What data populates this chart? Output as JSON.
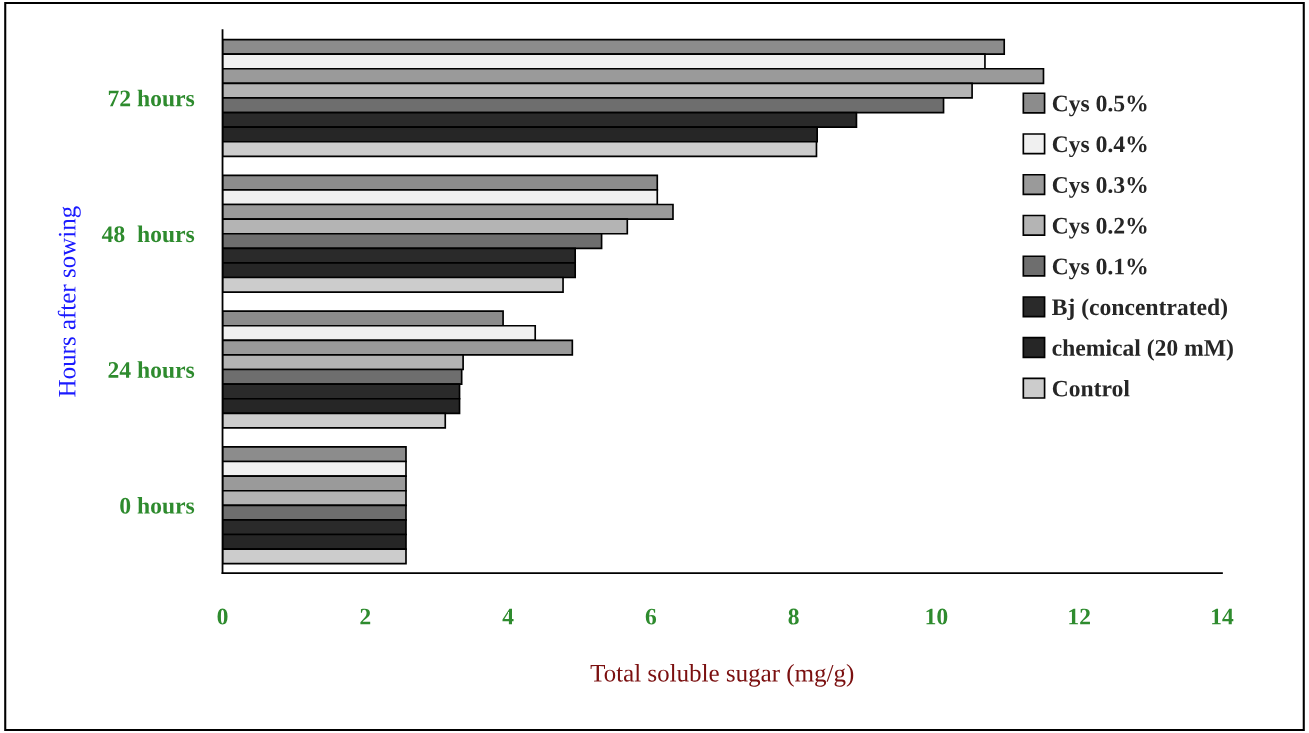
{
  "chart_data": {
    "type": "bar",
    "orientation": "horizontal",
    "xlabel": "Total soluble sugar (mg/g)",
    "ylabel": "Hours after sowing",
    "categories": [
      "72 hours",
      "48  hours",
      "24 hours",
      "0 hours"
    ],
    "series": [
      {
        "name": "Cys 0.5%",
        "color": "#8c8c8c",
        "values": [
          10.95,
          6.09,
          3.93,
          2.57
        ]
      },
      {
        "name": "Cys 0.4%",
        "color": "#f0f0f0",
        "values": [
          10.68,
          6.09,
          4.38,
          2.57
        ]
      },
      {
        "name": "Cys 0.3%",
        "color": "#9a9a9a",
        "values": [
          11.5,
          6.31,
          4.9,
          2.57
        ]
      },
      {
        "name": "Cys 0.2%",
        "color": "#b4b4b4",
        "values": [
          10.5,
          5.67,
          3.37,
          2.57
        ]
      },
      {
        "name": "Cys 0.1%",
        "color": "#6e6e6e",
        "values": [
          10.1,
          5.31,
          3.35,
          2.57
        ]
      },
      {
        "name": "Bj (concentrated)",
        "color": "#2a2a2a",
        "values": [
          8.88,
          4.94,
          3.32,
          2.57
        ]
      },
      {
        "name": "chemical (20 mM)",
        "color": "#262626",
        "values": [
          8.33,
          4.94,
          3.32,
          2.57
        ]
      },
      {
        "name": "Control",
        "color": "#cccccc",
        "values": [
          8.32,
          4.77,
          3.12,
          2.57
        ]
      }
    ],
    "xlim": [
      0,
      14
    ],
    "xticks": [
      0,
      2,
      4,
      6,
      8,
      10,
      12,
      14
    ],
    "legend": "right",
    "grid": false
  }
}
